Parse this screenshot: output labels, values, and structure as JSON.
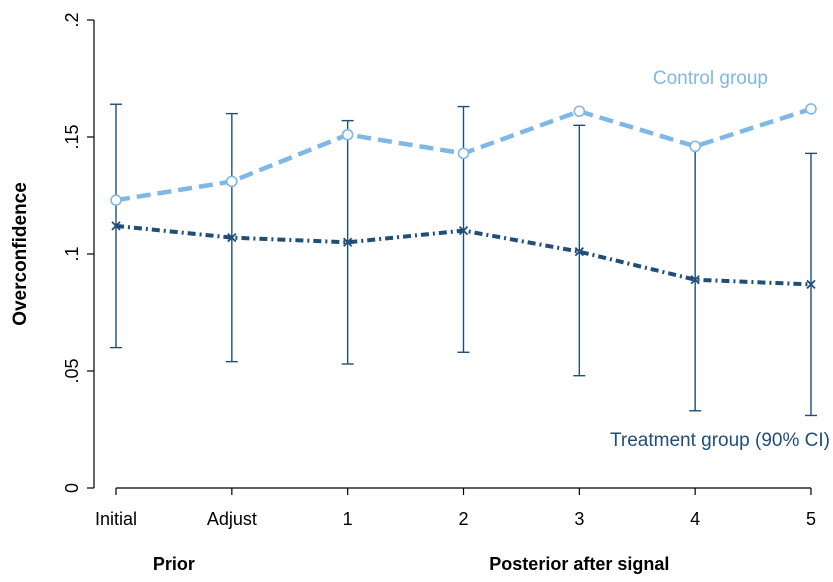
{
  "chart_data": {
    "type": "line",
    "title": "",
    "ylabel": "Overconfidence",
    "ylim": [
      0,
      0.2
    ],
    "yticks": [
      {
        "value": 0,
        "label": "0"
      },
      {
        "value": 0.05,
        "label": ".05"
      },
      {
        "value": 0.1,
        "label": ".1"
      },
      {
        "value": 0.15,
        "label": ".15"
      },
      {
        "value": 0.2,
        "label": ".2"
      }
    ],
    "categories": [
      "Initial",
      "Adjust",
      "1",
      "2",
      "3",
      "4",
      "5"
    ],
    "group_labels": [
      {
        "label": "Prior",
        "spans": [
          "Initial",
          "Adjust"
        ]
      },
      {
        "label": "Posterior after signal",
        "spans": [
          "1",
          "2",
          "3",
          "4",
          "5"
        ]
      }
    ],
    "grid": false,
    "series": [
      {
        "name": "Control group",
        "color": "#7fb8e6",
        "style": "dashed",
        "marker": "circle",
        "values": [
          0.123,
          0.131,
          0.151,
          0.143,
          0.161,
          0.146,
          0.162
        ]
      },
      {
        "name": "Treatment group (90% CI)",
        "color": "#1f4e79",
        "style": "dash-dot",
        "marker": "x",
        "values": [
          0.112,
          0.107,
          0.105,
          0.11,
          0.101,
          0.089,
          0.087
        ],
        "ci_low": [
          0.06,
          0.054,
          0.053,
          0.058,
          0.048,
          0.033,
          0.031
        ],
        "ci_high": [
          0.164,
          0.16,
          0.157,
          0.163,
          0.155,
          0.146,
          0.143
        ]
      }
    ]
  }
}
